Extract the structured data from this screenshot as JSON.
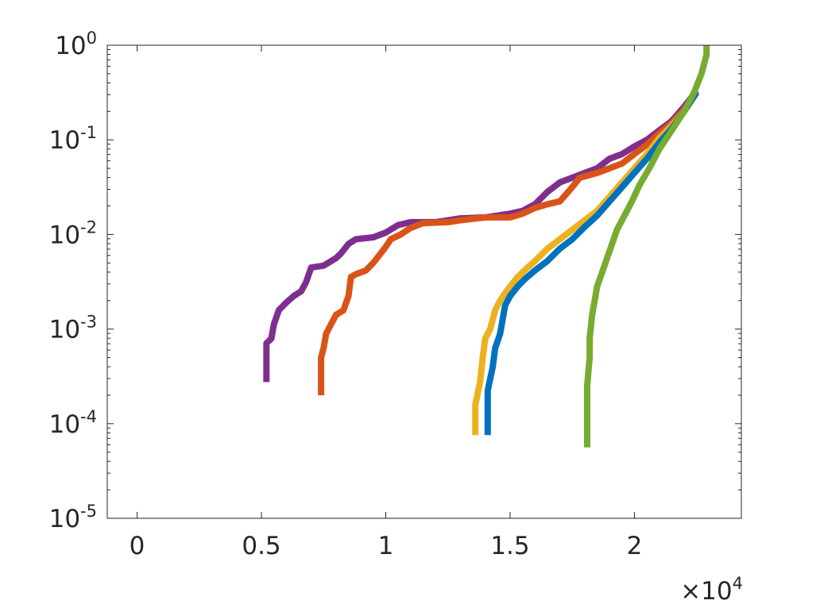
{
  "chart_data": {
    "type": "line",
    "title": "",
    "xlabel": "",
    "ylabel": "",
    "x_exponent_label": {
      "base": "×10",
      "exponent": "4"
    },
    "xlim": [
      -0.12,
      2.43
    ],
    "ylim_log10": [
      -5,
      0
    ],
    "y_scale": "log",
    "grid": false,
    "legend": "none",
    "x_ticks": [
      {
        "value": 0,
        "label": "0"
      },
      {
        "value": 0.5,
        "label": "0.5"
      },
      {
        "value": 1,
        "label": "1"
      },
      {
        "value": 1.5,
        "label": "1.5"
      },
      {
        "value": 2,
        "label": "2"
      }
    ],
    "y_ticks": [
      {
        "exp": 0,
        "base": "10",
        "sup": "0"
      },
      {
        "exp": -1,
        "base": "10",
        "sup": "-1"
      },
      {
        "exp": -2,
        "base": "10",
        "sup": "-2"
      },
      {
        "exp": -3,
        "base": "10",
        "sup": "-3"
      },
      {
        "exp": -4,
        "base": "10",
        "sup": "-4"
      },
      {
        "exp": -5,
        "base": "10",
        "sup": "-5"
      }
    ],
    "series": [
      {
        "color": "#7E2F8E",
        "points": [
          [
            0.52,
            -3.56
          ],
          [
            0.52,
            -3.15
          ],
          [
            0.54,
            -3.1
          ],
          [
            0.55,
            -2.95
          ],
          [
            0.57,
            -2.8
          ],
          [
            0.6,
            -2.72
          ],
          [
            0.63,
            -2.65
          ],
          [
            0.66,
            -2.6
          ],
          [
            0.68,
            -2.5
          ],
          [
            0.7,
            -2.35
          ],
          [
            0.75,
            -2.33
          ],
          [
            0.8,
            -2.25
          ],
          [
            0.82,
            -2.2
          ],
          [
            0.85,
            -2.1
          ],
          [
            0.88,
            -2.05
          ],
          [
            0.95,
            -2.03
          ],
          [
            1.0,
            -1.98
          ],
          [
            1.05,
            -1.9
          ],
          [
            1.1,
            -1.87
          ],
          [
            1.2,
            -1.87
          ],
          [
            1.3,
            -1.83
          ],
          [
            1.4,
            -1.82
          ],
          [
            1.5,
            -1.78
          ],
          [
            1.55,
            -1.75
          ],
          [
            1.6,
            -1.68
          ],
          [
            1.65,
            -1.55
          ],
          [
            1.7,
            -1.45
          ],
          [
            1.75,
            -1.4
          ],
          [
            1.8,
            -1.35
          ],
          [
            1.85,
            -1.3
          ],
          [
            1.9,
            -1.2
          ],
          [
            1.95,
            -1.15
          ],
          [
            2.0,
            -1.07
          ],
          [
            2.05,
            -1.0
          ],
          [
            2.1,
            -0.9
          ],
          [
            2.15,
            -0.8
          ],
          [
            2.2,
            -0.65
          ],
          [
            2.25,
            -0.48
          ]
        ]
      },
      {
        "color": "#D95319",
        "points": [
          [
            0.74,
            -3.7
          ],
          [
            0.74,
            -3.3
          ],
          [
            0.75,
            -3.2
          ],
          [
            0.76,
            -3.05
          ],
          [
            0.78,
            -2.95
          ],
          [
            0.8,
            -2.85
          ],
          [
            0.83,
            -2.8
          ],
          [
            0.85,
            -2.65
          ],
          [
            0.86,
            -2.45
          ],
          [
            0.88,
            -2.42
          ],
          [
            0.92,
            -2.38
          ],
          [
            0.95,
            -2.3
          ],
          [
            0.98,
            -2.2
          ],
          [
            1.0,
            -2.13
          ],
          [
            1.02,
            -2.05
          ],
          [
            1.06,
            -2.0
          ],
          [
            1.1,
            -1.93
          ],
          [
            1.15,
            -1.88
          ],
          [
            1.25,
            -1.87
          ],
          [
            1.3,
            -1.85
          ],
          [
            1.4,
            -1.82
          ],
          [
            1.5,
            -1.82
          ],
          [
            1.55,
            -1.78
          ],
          [
            1.6,
            -1.72
          ],
          [
            1.65,
            -1.68
          ],
          [
            1.7,
            -1.65
          ],
          [
            1.75,
            -1.5
          ],
          [
            1.78,
            -1.4
          ],
          [
            1.85,
            -1.35
          ],
          [
            1.9,
            -1.3
          ],
          [
            1.95,
            -1.25
          ],
          [
            2.0,
            -1.15
          ],
          [
            2.05,
            -1.05
          ],
          [
            2.1,
            -0.93
          ],
          [
            2.15,
            -0.82
          ],
          [
            2.2,
            -0.68
          ],
          [
            2.25,
            -0.5
          ]
        ]
      },
      {
        "color": "#EDB120",
        "points": [
          [
            1.36,
            -4.12
          ],
          [
            1.36,
            -3.8
          ],
          [
            1.38,
            -3.55
          ],
          [
            1.39,
            -3.3
          ],
          [
            1.4,
            -3.1
          ],
          [
            1.42,
            -3.0
          ],
          [
            1.44,
            -2.8
          ],
          [
            1.46,
            -2.7
          ],
          [
            1.48,
            -2.62
          ],
          [
            1.5,
            -2.55
          ],
          [
            1.53,
            -2.45
          ],
          [
            1.57,
            -2.35
          ],
          [
            1.6,
            -2.28
          ],
          [
            1.65,
            -2.15
          ],
          [
            1.7,
            -2.05
          ],
          [
            1.75,
            -1.95
          ],
          [
            1.8,
            -1.85
          ],
          [
            1.85,
            -1.75
          ],
          [
            1.9,
            -1.6
          ],
          [
            1.95,
            -1.45
          ],
          [
            2.0,
            -1.3
          ],
          [
            2.05,
            -1.15
          ],
          [
            2.1,
            -0.98
          ],
          [
            2.15,
            -0.85
          ],
          [
            2.2,
            -0.7
          ],
          [
            2.25,
            -0.5
          ]
        ]
      },
      {
        "color": "#0072BD",
        "points": [
          [
            1.41,
            -4.12
          ],
          [
            1.41,
            -3.65
          ],
          [
            1.43,
            -3.4
          ],
          [
            1.44,
            -3.2
          ],
          [
            1.46,
            -3.05
          ],
          [
            1.47,
            -2.9
          ],
          [
            1.48,
            -2.75
          ],
          [
            1.5,
            -2.65
          ],
          [
            1.53,
            -2.55
          ],
          [
            1.56,
            -2.47
          ],
          [
            1.6,
            -2.38
          ],
          [
            1.65,
            -2.28
          ],
          [
            1.7,
            -2.15
          ],
          [
            1.75,
            -2.05
          ],
          [
            1.8,
            -1.92
          ],
          [
            1.85,
            -1.8
          ],
          [
            1.9,
            -1.65
          ],
          [
            1.95,
            -1.5
          ],
          [
            2.0,
            -1.35
          ],
          [
            2.05,
            -1.2
          ],
          [
            2.1,
            -1.03
          ],
          [
            2.15,
            -0.88
          ],
          [
            2.2,
            -0.7
          ],
          [
            2.25,
            -0.5
          ]
        ]
      },
      {
        "color": "#77AC30",
        "points": [
          [
            1.81,
            -4.25
          ],
          [
            1.81,
            -3.6
          ],
          [
            1.82,
            -3.3
          ],
          [
            1.82,
            -3.1
          ],
          [
            1.83,
            -2.85
          ],
          [
            1.84,
            -2.7
          ],
          [
            1.85,
            -2.55
          ],
          [
            1.87,
            -2.4
          ],
          [
            1.89,
            -2.25
          ],
          [
            1.91,
            -2.1
          ],
          [
            1.93,
            -1.95
          ],
          [
            1.96,
            -1.8
          ],
          [
            1.99,
            -1.65
          ],
          [
            2.02,
            -1.48
          ],
          [
            2.06,
            -1.3
          ],
          [
            2.1,
            -1.1
          ],
          [
            2.15,
            -0.9
          ],
          [
            2.2,
            -0.7
          ],
          [
            2.24,
            -0.5
          ],
          [
            2.27,
            -0.3
          ],
          [
            2.29,
            -0.1
          ],
          [
            2.29,
            0.0
          ]
        ]
      }
    ]
  }
}
